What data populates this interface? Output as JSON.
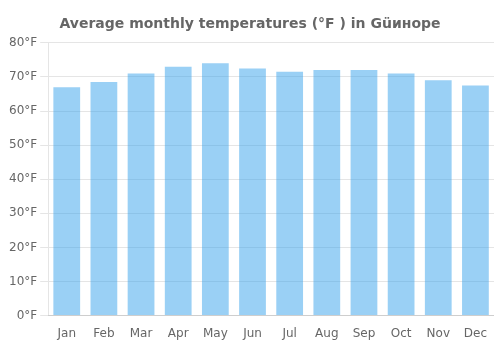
{
  "chart_data": {
    "type": "bar",
    "title": "Average monthly temperatures (°F ) in Güинope",
    "categories": [
      "Jan",
      "Feb",
      "Mar",
      "Apr",
      "May",
      "Jun",
      "Jul",
      "Aug",
      "Sep",
      "Oct",
      "Nov",
      "Dec"
    ],
    "values": [
      67,
      68.5,
      71,
      73,
      74,
      72.5,
      71.5,
      72,
      72,
      71,
      69,
      67.5
    ],
    "ylim": [
      0,
      80
    ],
    "yticks": [
      {
        "value": 0,
        "label": "0°F"
      },
      {
        "value": 10,
        "label": "10°F"
      },
      {
        "value": 20,
        "label": "20°F"
      },
      {
        "value": 30,
        "label": "30°F"
      },
      {
        "value": 40,
        "label": "40°F"
      },
      {
        "value": 50,
        "label": "50°F"
      },
      {
        "value": 60,
        "label": "60°F"
      },
      {
        "value": 70,
        "label": "70°F"
      },
      {
        "value": 80,
        "label": "80°F"
      }
    ],
    "grid": true
  }
}
